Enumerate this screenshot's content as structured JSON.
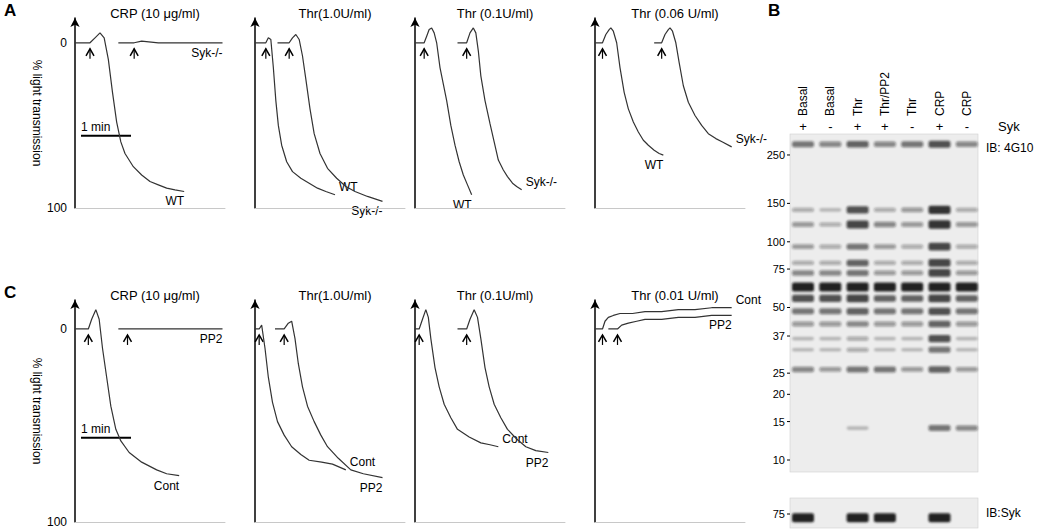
{
  "chart_data": [
    {
      "type": "line",
      "panel_label": "A",
      "title": "CRP (10 μg/ml)",
      "ylabel": "% light transmission",
      "xlim": [
        0,
        180
      ],
      "xticks": [],
      "ylim": [
        -15,
        100
      ],
      "yticks": [
        0,
        100
      ],
      "tick_labels": "y",
      "grid": false,
      "scale_bar": {
        "label": "1 min",
        "value": 60
      },
      "series": [
        {
          "name": "WT",
          "color": "#333333",
          "agonist_added": 18,
          "x": [
            0,
            10,
            18,
            24,
            30,
            35,
            40,
            45,
            50,
            55,
            60,
            70,
            80,
            90,
            100,
            110,
            120,
            131
          ],
          "values": [
            0,
            0,
            0,
            -3,
            -6,
            -3,
            10,
            30,
            48,
            60,
            67,
            75,
            80,
            84,
            86,
            88,
            89,
            90
          ]
        },
        {
          "name": "Syk-/-",
          "color": "#333333",
          "agonist_added": 71,
          "x": [
            52,
            60,
            71,
            80,
            100,
            120,
            140,
            160,
            177
          ],
          "values": [
            0,
            0,
            0,
            -1,
            0,
            0,
            0,
            0,
            0
          ]
        }
      ]
    },
    {
      "type": "line",
      "title": "Thr(1.0U/ml)",
      "xlim": [
        0,
        180
      ],
      "xticks": [],
      "ylim": [
        -15,
        100
      ],
      "yticks": [
        0,
        100
      ],
      "tick_labels": false,
      "grid": false,
      "series": [
        {
          "name": "WT",
          "color": "#333333",
          "agonist_added": 13,
          "x": [
            0,
            8,
            13,
            16,
            19,
            22,
            25,
            28,
            32,
            38,
            45,
            55,
            65,
            75,
            85,
            96
          ],
          "values": [
            0,
            0,
            0,
            -3,
            -2,
            15,
            35,
            50,
            62,
            72,
            78,
            82,
            85,
            88,
            90,
            92
          ]
        },
        {
          "name": "Syk-/-",
          "color": "#333333",
          "agonist_added": 41,
          "x": [
            27,
            35,
            41,
            45,
            49,
            53,
            57,
            61,
            66,
            71,
            78,
            87,
            98,
            109,
            120,
            135,
            153
          ],
          "values": [
            0,
            0,
            0,
            -3,
            -5,
            -2,
            8,
            22,
            40,
            55,
            67,
            76,
            82,
            87,
            90,
            93,
            96
          ]
        }
      ]
    },
    {
      "type": "line",
      "title": "Thr (0.1U/ml)",
      "xlim": [
        0,
        180
      ],
      "xticks": [],
      "ylim": [
        -15,
        100
      ],
      "yticks": [
        0,
        100
      ],
      "tick_labels": false,
      "grid": false,
      "series": [
        {
          "name": "WT",
          "color": "#333333",
          "agonist_added": 11,
          "x": [
            0,
            6,
            11,
            14,
            17,
            20,
            23,
            26,
            30,
            34,
            38,
            43,
            48,
            53,
            58,
            63,
            68
          ],
          "values": [
            0,
            0,
            0,
            -4,
            -8,
            -9,
            -6,
            0,
            15,
            25,
            35,
            50,
            62,
            72,
            80,
            86,
            92
          ]
        },
        {
          "name": "Syk-/-",
          "color": "#333333",
          "agonist_added": 62,
          "x": [
            51,
            56,
            62,
            66,
            70,
            73,
            76,
            79,
            84,
            90,
            95,
            100,
            106,
            111,
            117,
            122,
            128
          ],
          "values": [
            0,
            0,
            0,
            -6,
            -9,
            -6,
            5,
            20,
            35,
            49,
            60,
            71,
            77,
            81,
            85,
            87,
            89
          ]
        }
      ]
    },
    {
      "type": "line",
      "title": "Thr (0.06 U/ml)",
      "xlim": [
        0,
        180
      ],
      "xticks": [],
      "ylim": [
        -15,
        100
      ],
      "yticks": [
        0,
        100
      ],
      "tick_labels": false,
      "grid": false,
      "series": [
        {
          "name": "WT",
          "color": "#333333",
          "agonist_added": 9,
          "x": [
            0,
            5,
            9,
            13,
            17,
            19,
            22,
            26,
            30,
            35,
            40,
            46,
            52,
            58,
            64,
            71,
            77,
            82
          ],
          "values": [
            0,
            0,
            0,
            -5,
            -8,
            -9,
            -7,
            0,
            15,
            30,
            40,
            48,
            54,
            59,
            62,
            65,
            67,
            68
          ]
        },
        {
          "name": "Syk-/-",
          "color": "#333333",
          "agonist_added": 80,
          "x": [
            71,
            76,
            80,
            84,
            88,
            90,
            93,
            97,
            101,
            106,
            112,
            120,
            128,
            136,
            145,
            153,
            164
          ],
          "values": [
            0,
            0,
            0,
            -5,
            -8,
            -9,
            -7,
            0,
            12,
            26,
            36,
            44,
            50,
            55,
            58,
            60,
            63
          ]
        }
      ]
    },
    {
      "type": "line",
      "panel_label": "C",
      "title": "CRP (10 μg/ml)",
      "ylabel": "% light transmission",
      "xlim": [
        0,
        180
      ],
      "xticks": [],
      "ylim": [
        -15,
        100
      ],
      "yticks": [
        0,
        100
      ],
      "tick_labels": "y",
      "grid": false,
      "scale_bar": {
        "label": "1 min",
        "value": 60
      },
      "series": [
        {
          "name": "Cont",
          "color": "#333333",
          "agonist_added": 16,
          "x": [
            0,
            8,
            16,
            20,
            25,
            29,
            33,
            38,
            43,
            49,
            55,
            65,
            80,
            98,
            110,
            125
          ],
          "values": [
            0,
            0,
            0,
            -5,
            -10,
            -5,
            10,
            25,
            40,
            52,
            58,
            64,
            69,
            73,
            75,
            76
          ]
        },
        {
          "name": "PP2",
          "color": "#333333",
          "agonist_added": 63,
          "x": [
            52,
            63,
            80,
            100,
            120,
            140,
            160,
            177
          ],
          "values": [
            0,
            0,
            0,
            0,
            0,
            0,
            0,
            0
          ]
        }
      ]
    },
    {
      "type": "line",
      "title": "Thr(1.0U/ml)",
      "xlim": [
        0,
        180
      ],
      "xticks": [],
      "ylim": [
        -15,
        100
      ],
      "yticks": [
        0,
        100
      ],
      "tick_labels": false,
      "grid": false,
      "series": [
        {
          "name": "Cont",
          "color": "#333333",
          "agonist_added": 5,
          "x": [
            0,
            3,
            5,
            8,
            12,
            16,
            21,
            27,
            35,
            44,
            55,
            65,
            80,
            93,
            109
          ],
          "values": [
            0,
            0,
            0,
            -2,
            10,
            25,
            38,
            48,
            55,
            61,
            65,
            68,
            69,
            70,
            73
          ]
        },
        {
          "name": "PP2",
          "color": "#333333",
          "agonist_added": 35,
          "x": [
            24,
            30,
            35,
            40,
            44,
            48,
            52,
            57,
            63,
            71,
            79,
            87,
            100,
            115,
            130,
            153
          ],
          "values": [
            0,
            0,
            0,
            -3,
            -4,
            5,
            18,
            30,
            40,
            48,
            55,
            61,
            67,
            73,
            75,
            77
          ]
        }
      ]
    },
    {
      "type": "line",
      "title": "Thr (0.1U/ml)",
      "xlim": [
        0,
        180
      ],
      "xticks": [],
      "ylim": [
        -15,
        100
      ],
      "yticks": [
        0,
        100
      ],
      "tick_labels": false,
      "grid": false,
      "series": [
        {
          "name": "Cont",
          "color": "#333333",
          "agonist_added": 5,
          "x": [
            0,
            3,
            5,
            9,
            13,
            16,
            19,
            24,
            29,
            35,
            43,
            51,
            65,
            79,
            90,
            100
          ],
          "values": [
            0,
            0,
            0,
            -5,
            -10,
            -6,
            5,
            20,
            30,
            39,
            46,
            52,
            56,
            59,
            60,
            61
          ]
        },
        {
          "name": "PP2",
          "color": "#333333",
          "agonist_added": 62,
          "x": [
            51,
            56,
            62,
            66,
            71,
            75,
            79,
            84,
            89,
            95,
            103,
            111,
            122,
            133,
            145,
            160
          ],
          "values": [
            0,
            0,
            0,
            -5,
            -10,
            -6,
            5,
            20,
            30,
            39,
            46,
            52,
            57,
            61,
            63,
            64
          ]
        }
      ]
    },
    {
      "type": "line",
      "title": "Thr (0.01 U/ml)",
      "xlim": [
        0,
        180
      ],
      "xticks": [],
      "ylim": [
        -15,
        100
      ],
      "yticks": [
        0,
        100
      ],
      "tick_labels": false,
      "grid": false,
      "series": [
        {
          "name": "Cont",
          "color": "#333333",
          "agonist_added": 9,
          "x": [
            0,
            5,
            9,
            12,
            16,
            22,
            30,
            45,
            60,
            80,
            100,
            120,
            140,
            164
          ],
          "values": [
            0,
            0,
            0,
            -4,
            -6,
            -7,
            -8,
            -8,
            -9,
            -9,
            -10,
            -10,
            -11,
            -11
          ]
        },
        {
          "name": "PP2",
          "color": "#333333",
          "agonist_added": 27,
          "x": [
            16,
            22,
            27,
            32,
            40,
            50,
            60,
            80,
            100,
            120,
            140,
            164
          ],
          "values": [
            0,
            0,
            0,
            -2,
            -3,
            -4,
            -5,
            -5,
            -6,
            -6,
            -7,
            -7
          ]
        }
      ]
    }
  ],
  "blot": {
    "panel_label": "B",
    "syk_label": "Syk",
    "lanes": [
      {
        "label": "Basal",
        "syk": "+"
      },
      {
        "label": "Basal",
        "syk": "-"
      },
      {
        "label": "Thr",
        "syk": "+"
      },
      {
        "label": "Thr/PP2",
        "syk": "+"
      },
      {
        "label": "Thr",
        "syk": "-"
      },
      {
        "label": "CRP",
        "syk": "+"
      },
      {
        "label": "CRP",
        "syk": "-"
      }
    ],
    "blots": [
      {
        "label": "IB: 4G10",
        "markers": [
          250,
          150,
          100,
          75,
          50,
          37,
          25,
          20,
          15,
          10
        ],
        "bands": [
          {
            "mw": 280,
            "intensity": [
              0.5,
              0.4,
              0.6,
              0.4,
              0.5,
              0.7,
              0.4
            ]
          },
          {
            "mw": 140,
            "intensity": [
              0.2,
              0.1,
              0.7,
              0.2,
              0.3,
              0.9,
              0.2
            ]
          },
          {
            "mw": 120,
            "intensity": [
              0.3,
              0.2,
              0.8,
              0.4,
              0.3,
              0.9,
              0.3
            ]
          },
          {
            "mw": 95,
            "intensity": [
              0.3,
              0.2,
              0.5,
              0.3,
              0.2,
              0.8,
              0.2
            ]
          },
          {
            "mw": 80,
            "intensity": [
              0.2,
              0.2,
              0.6,
              0.2,
              0.2,
              0.8,
              0.2
            ]
          },
          {
            "mw": 72,
            "intensity": [
              0.4,
              0.4,
              0.5,
              0.3,
              0.3,
              0.8,
              0.3
            ]
          },
          {
            "mw": 62,
            "intensity": [
              1,
              1,
              1,
              1,
              1,
              1,
              1
            ]
          },
          {
            "mw": 55,
            "intensity": [
              0.7,
              0.7,
              0.8,
              0.6,
              0.6,
              0.8,
              0.6
            ]
          },
          {
            "mw": 48,
            "intensity": [
              0.5,
              0.5,
              0.6,
              0.5,
              0.5,
              0.7,
              0.5
            ]
          },
          {
            "mw": 42,
            "intensity": [
              0.3,
              0.3,
              0.4,
              0.3,
              0.3,
              0.6,
              0.3
            ]
          },
          {
            "mw": 36,
            "intensity": [
              0.1,
              0.1,
              0.2,
              0.1,
              0.1,
              0.7,
              0.1
            ]
          },
          {
            "mw": 32,
            "intensity": [
              0.1,
              0.1,
              0.2,
              0.1,
              0.1,
              0.5,
              0.1
            ]
          },
          {
            "mw": 26,
            "intensity": [
              0.4,
              0.3,
              0.5,
              0.5,
              0.3,
              0.6,
              0.3
            ]
          },
          {
            "mw": 14,
            "intensity": [
              0,
              0,
              0.1,
              0,
              0,
              0.5,
              0.4
            ]
          }
        ]
      },
      {
        "label": "IB:Syk",
        "markers": [
          75
        ],
        "bands": [
          {
            "mw": 72,
            "intensity": [
              1,
              0,
              1,
              1,
              0,
              1,
              0
            ]
          }
        ]
      }
    ]
  }
}
